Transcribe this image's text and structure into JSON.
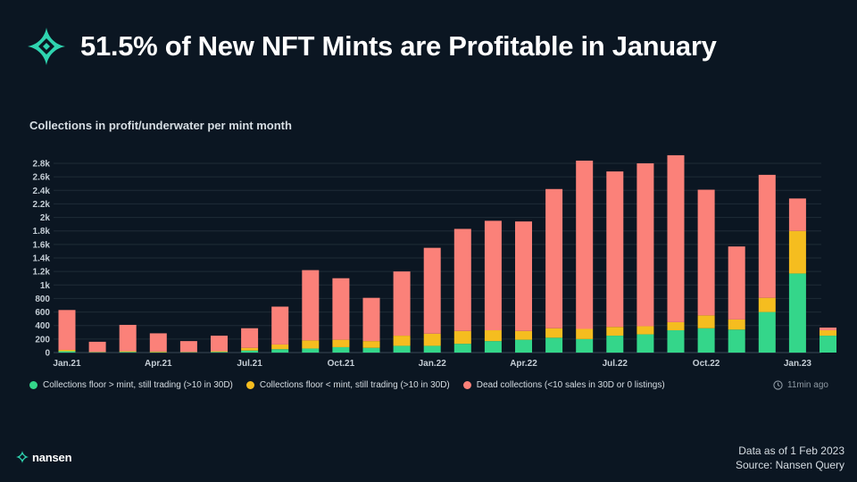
{
  "headline": "51.5% of New NFT Mints are Profitable in January",
  "chart_title": "Collections in profit/underwater per mint month",
  "colors": {
    "profit": "#34d68a",
    "underwater": "#f5bd1f",
    "dead": "#fb8179",
    "grid": "#1f2c37",
    "background": "#0b1622"
  },
  "chart_data": {
    "type": "bar",
    "stacked": true,
    "title": "Collections in profit/underwater per mint month",
    "xlabel": "",
    "ylabel": "",
    "ylim": [
      0,
      2800
    ],
    "y_ticks": [
      0,
      200,
      400,
      600,
      800,
      1000,
      1200,
      1400,
      1600,
      1800,
      2000,
      2200,
      2400,
      2600,
      2800
    ],
    "y_tick_labels": [
      "0",
      "200",
      "400",
      "600",
      "800",
      "1k",
      "1.2k",
      "1.4k",
      "1.6k",
      "1.8k",
      "2k",
      "2.2k",
      "2.4k",
      "2.6k",
      "2.8k"
    ],
    "categories": [
      "Jan.21",
      "Feb.21",
      "Mar.21",
      "Apr.21",
      "May.21",
      "Jun.21",
      "Jul.21",
      "Aug.21",
      "Sep.21",
      "Oct.21",
      "Nov.21",
      "Dec.21",
      "Jan.22",
      "Feb.22",
      "Mar.22",
      "Apr.22",
      "May.22",
      "Jun.22",
      "Jul.22",
      "Aug.22",
      "Sep.22",
      "Oct.22",
      "Nov.22",
      "Dec.22",
      "Jan.23",
      "Feb.23"
    ],
    "x_tick_labels": [
      {
        "index": 0,
        "label": "Jan.21"
      },
      {
        "index": 3,
        "label": "Apr.21"
      },
      {
        "index": 6,
        "label": "Jul.21"
      },
      {
        "index": 9,
        "label": "Oct.21"
      },
      {
        "index": 12,
        "label": "Jan.22"
      },
      {
        "index": 15,
        "label": "Apr.22"
      },
      {
        "index": 18,
        "label": "Jul.22"
      },
      {
        "index": 21,
        "label": "Oct.22"
      },
      {
        "index": 24,
        "label": "Jan.23"
      }
    ],
    "series": [
      {
        "name": "Collections floor > mint, still trading (>10 in 30D)",
        "color": "#34d68a",
        "values": [
          20,
          5,
          10,
          5,
          5,
          10,
          30,
          50,
          60,
          80,
          70,
          100,
          100,
          130,
          170,
          190,
          220,
          200,
          250,
          270,
          330,
          360,
          340,
          600,
          1170,
          250
        ]
      },
      {
        "name": "Collections floor < mint, still trading (>10 in 30D)",
        "color": "#f5bd1f",
        "values": [
          20,
          5,
          10,
          10,
          5,
          10,
          40,
          70,
          120,
          110,
          100,
          150,
          180,
          190,
          160,
          130,
          140,
          150,
          130,
          120,
          120,
          190,
          150,
          210,
          630,
          80
        ]
      },
      {
        "name": "Dead collections (<10 sales in 30D or 0 listings)",
        "color": "#fb8179",
        "values": [
          590,
          150,
          390,
          270,
          160,
          230,
          290,
          560,
          1040,
          910,
          640,
          950,
          1270,
          1510,
          1620,
          1620,
          2060,
          2490,
          2300,
          2410,
          2470,
          1860,
          1080,
          1820,
          480,
          40
        ]
      }
    ]
  },
  "legend": [
    {
      "label": "Collections floor > mint, still trading (>10 in 30D)",
      "color": "#34d68a"
    },
    {
      "label": "Collections floor < mint, still trading (>10 in 30D)",
      "color": "#f5bd1f"
    },
    {
      "label": "Dead collections (<10 sales in 30D or 0 listings)",
      "color": "#fb8179"
    }
  ],
  "updated": "11min ago",
  "clock_icon": "clock-icon",
  "brand": {
    "name": "nansen",
    "icon": "nansen-logo-icon"
  },
  "footnote": {
    "line1": "Data as of 1 Feb 2023",
    "line2": "Source: Nansen Query"
  }
}
